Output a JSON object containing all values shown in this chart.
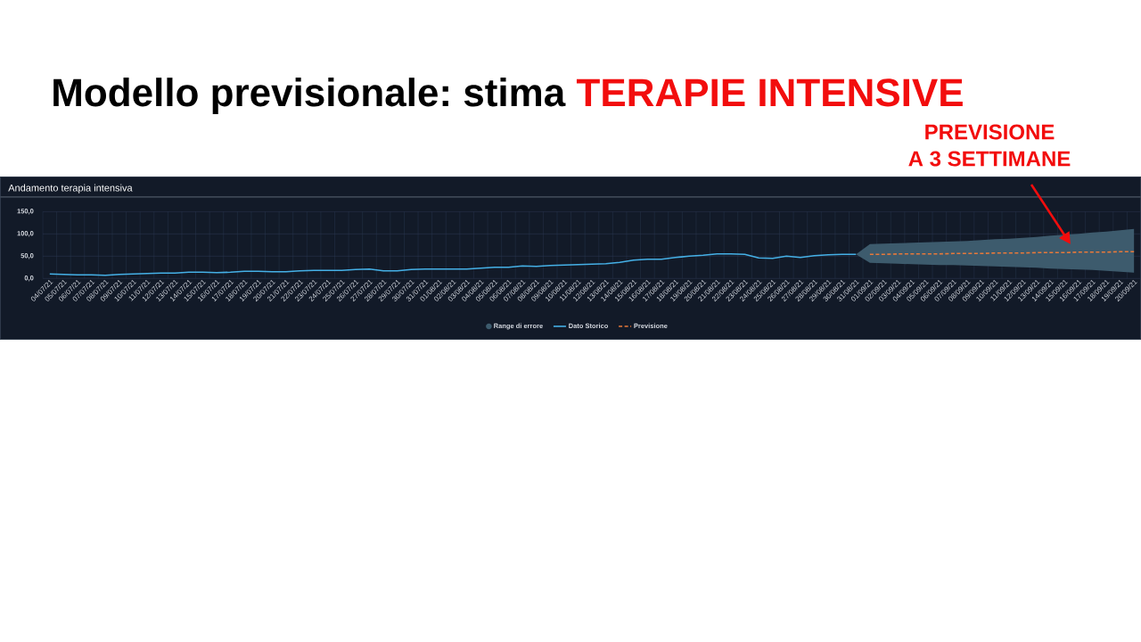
{
  "chart_data": {
    "type": "line",
    "title": "Modello previsionale: stima **TERAPIE INTENSIVE**",
    "subtitle": "Andamento terapia intensiva",
    "categories": [
      "04/07/21",
      "05/07/21",
      "06/07/21",
      "07/07/21",
      "08/07/21",
      "09/07/21",
      "10/07/21",
      "11/07/21",
      "12/07/21",
      "13/07/21",
      "14/07/21",
      "15/07/21",
      "16/07/21",
      "17/07/21",
      "18/07/21",
      "19/07/21",
      "20/07/21",
      "21/07/21",
      "22/07/21",
      "23/07/21",
      "24/07/21",
      "25/07/21",
      "26/07/21",
      "27/07/21",
      "28/07/21",
      "29/07/21",
      "30/07/21",
      "31/07/21",
      "01/08/21",
      "02/08/21",
      "03/08/21",
      "04/08/21",
      "05/08/21",
      "06/08/21",
      "07/08/21",
      "08/08/21",
      "09/08/21",
      "10/08/21",
      "11/08/21",
      "12/08/21",
      "13/08/21",
      "14/08/21",
      "15/08/21",
      "16/08/21",
      "17/08/21",
      "18/08/21",
      "19/08/21",
      "20/08/21",
      "21/08/21",
      "22/08/21",
      "23/08/21",
      "24/08/21",
      "25/08/21",
      "26/08/21",
      "27/08/21",
      "28/08/21",
      "29/08/21",
      "30/08/21",
      "31/08/21",
      "01/09/21",
      "02/09/21",
      "03/09/21",
      "04/09/21",
      "05/09/21",
      "06/09/21",
      "07/09/21",
      "08/09/21",
      "09/09/21",
      "10/09/21",
      "11/09/21",
      "12/09/21",
      "13/09/21",
      "14/09/21",
      "15/09/21",
      "16/09/21",
      "17/09/21",
      "18/09/21",
      "19/09/21",
      "20/09/21"
    ],
    "series": [
      {
        "name": "Range di errore",
        "type": "area",
        "color": "#3d5b6d",
        "values": [
          null,
          null,
          null,
          null,
          null,
          null,
          null,
          null,
          null,
          null,
          null,
          null,
          null,
          null,
          null,
          null,
          null,
          null,
          null,
          null,
          null,
          null,
          null,
          null,
          null,
          null,
          null,
          null,
          null,
          null,
          null,
          null,
          null,
          null,
          null,
          null,
          null,
          null,
          null,
          null,
          null,
          null,
          null,
          null,
          null,
          null,
          null,
          null,
          null,
          null,
          null,
          null,
          null,
          null,
          null,
          null,
          null,
          null,
          null,
          null,
          null,
          null,
          null,
          null,
          null,
          null,
          null,
          null,
          null,
          null,
          null,
          null,
          null,
          null,
          null,
          null,
          null,
          null,
          null
        ],
        "lower": [
          null,
          null,
          null,
          null,
          null,
          null,
          null,
          null,
          null,
          null,
          null,
          null,
          null,
          null,
          null,
          null,
          null,
          null,
          null,
          null,
          null,
          null,
          null,
          null,
          null,
          null,
          null,
          null,
          null,
          null,
          null,
          null,
          null,
          null,
          null,
          null,
          null,
          null,
          null,
          null,
          null,
          null,
          null,
          null,
          null,
          null,
          null,
          null,
          null,
          null,
          null,
          null,
          null,
          null,
          null,
          null,
          null,
          null,
          54,
          35,
          34,
          33,
          32,
          31,
          30,
          30,
          29,
          28,
          27,
          26,
          25,
          24,
          22,
          21,
          20,
          19,
          17,
          15,
          13
        ],
        "upper": [
          null,
          null,
          null,
          null,
          null,
          null,
          null,
          null,
          null,
          null,
          null,
          null,
          null,
          null,
          null,
          null,
          null,
          null,
          null,
          null,
          null,
          null,
          null,
          null,
          null,
          null,
          null,
          null,
          null,
          null,
          null,
          null,
          null,
          null,
          null,
          null,
          null,
          null,
          null,
          null,
          null,
          null,
          null,
          null,
          null,
          null,
          null,
          null,
          null,
          null,
          null,
          null,
          null,
          null,
          null,
          null,
          null,
          null,
          54,
          77,
          78,
          79,
          80,
          81,
          82,
          83,
          84,
          86,
          88,
          89,
          91,
          93,
          96,
          98,
          100,
          103,
          105,
          108,
          111
        ]
      },
      {
        "name": "Dato Storico",
        "color": "#45b0e6",
        "line_style": "solid",
        "values": [
          10,
          9,
          8,
          8,
          7,
          9,
          10,
          11,
          12,
          12,
          14,
          14,
          13,
          14,
          16,
          16,
          15,
          15,
          17,
          18,
          18,
          18,
          20,
          21,
          17,
          17,
          20,
          21,
          21,
          21,
          21,
          23,
          25,
          25,
          28,
          27,
          29,
          30,
          31,
          32,
          33,
          36,
          41,
          43,
          43,
          47,
          50,
          52,
          55,
          55,
          54,
          46,
          45,
          50,
          47,
          51,
          53,
          54,
          54,
          null,
          null,
          null,
          null,
          null,
          null,
          null,
          null,
          null,
          null,
          null,
          null,
          null,
          null,
          null,
          null,
          null,
          null,
          null,
          null
        ]
      },
      {
        "name": "Previsione",
        "color": "#e8793a",
        "line_style": "dashed",
        "values": [
          null,
          null,
          null,
          null,
          null,
          null,
          null,
          null,
          null,
          null,
          null,
          null,
          null,
          null,
          null,
          null,
          null,
          null,
          null,
          null,
          null,
          null,
          null,
          null,
          null,
          null,
          null,
          null,
          null,
          null,
          null,
          null,
          null,
          null,
          null,
          null,
          null,
          null,
          null,
          null,
          null,
          null,
          null,
          null,
          null,
          null,
          null,
          null,
          null,
          null,
          null,
          null,
          null,
          null,
          null,
          null,
          null,
          null,
          null,
          54,
          54,
          55,
          55,
          55,
          55,
          56,
          56,
          56,
          57,
          57,
          57,
          58,
          58,
          58,
          59,
          59,
          59,
          60,
          60
        ]
      }
    ],
    "ylim": [
      0,
      150
    ],
    "yticks": [
      {
        "value": 0,
        "label": "0,0"
      },
      {
        "value": 50,
        "label": "50,0"
      },
      {
        "value": 100,
        "label": "100,0"
      },
      {
        "value": 150,
        "label": "150,0"
      }
    ],
    "grid": true,
    "legend": "bottom",
    "marker": "none",
    "annotations": [
      "PREVISIONE A 3 SETTIMANE"
    ]
  }
}
